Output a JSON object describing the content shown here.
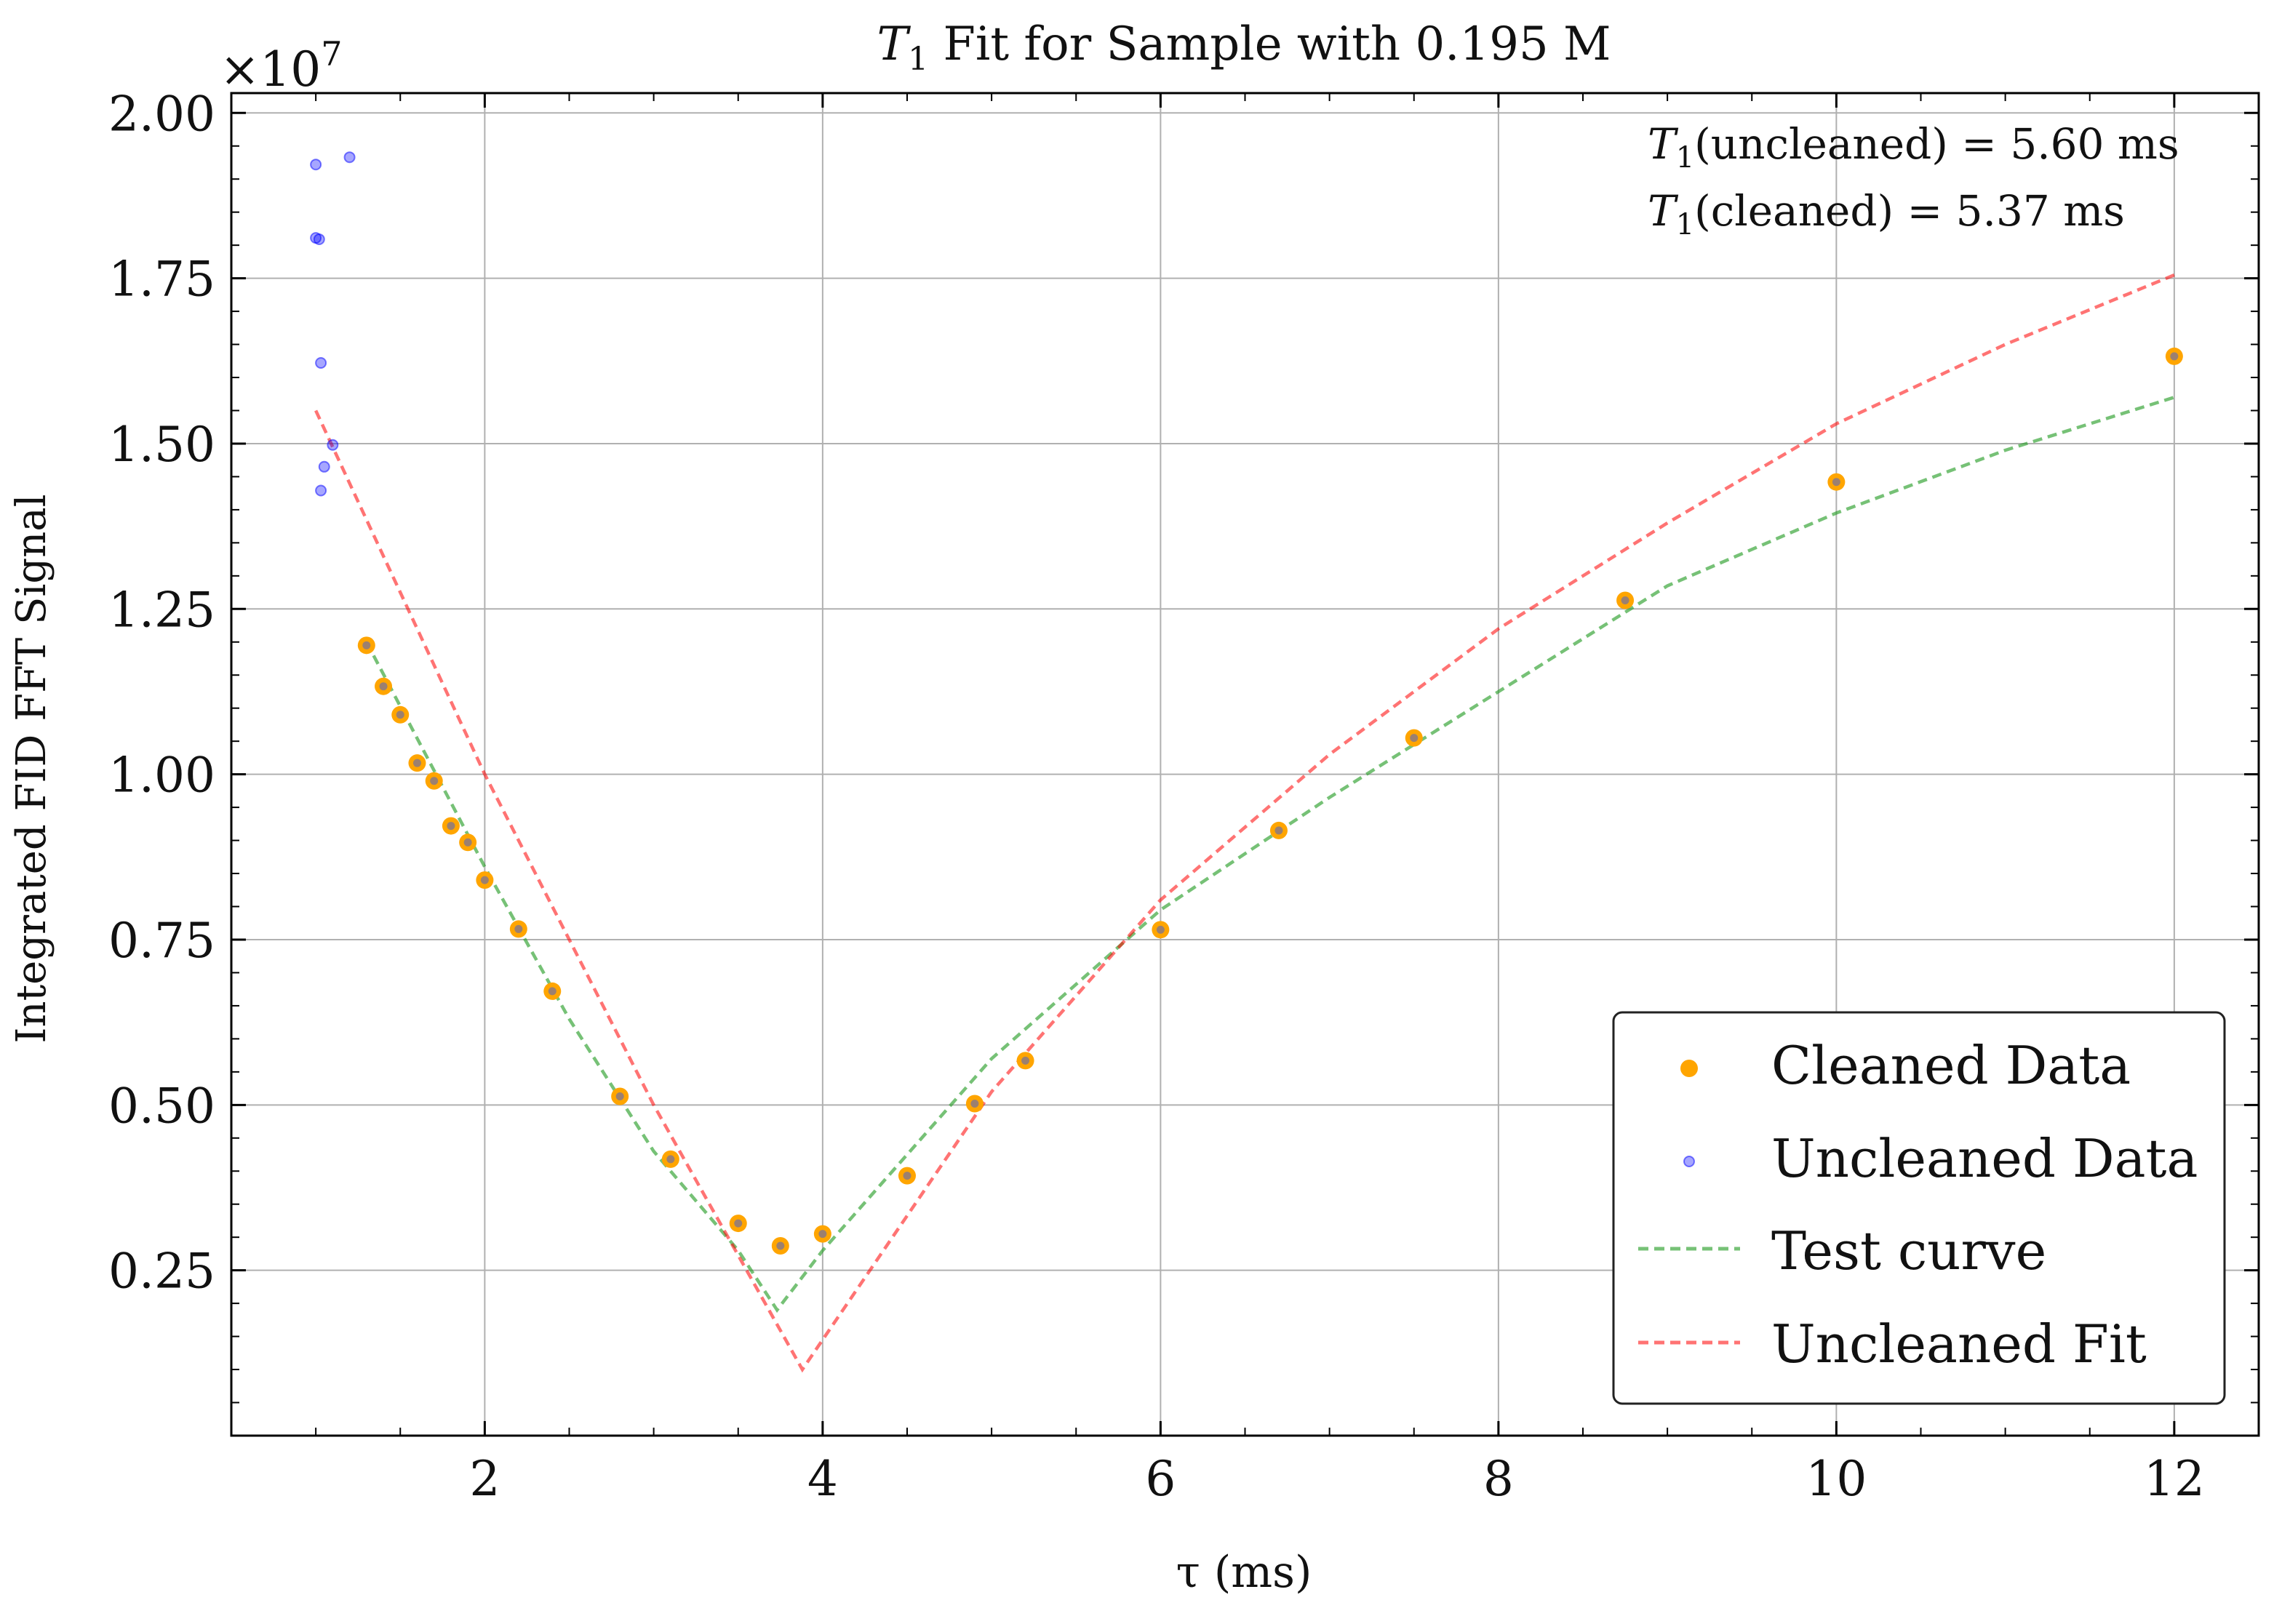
{
  "chart_data": {
    "type": "scatter",
    "title": "T1 Fit for Sample with 0.195 M",
    "title_symbol": "T",
    "title_subscript": "1",
    "title_rest": " Fit for Sample with 0.195 M",
    "xlabel": "τ (ms)",
    "ylabel": "Integrated FID FFT Signal",
    "y_offset_text": "×10",
    "y_offset_exponent": "7",
    "xlim": [
      0.5,
      12.5
    ],
    "ylim": [
      0.0,
      2.03
    ],
    "x_ticks": [
      2,
      4,
      6,
      8,
      10,
      12
    ],
    "x_tick_labels": [
      "2",
      "4",
      "6",
      "8",
      "10",
      "12"
    ],
    "y_ticks": [
      0.25,
      0.5,
      0.75,
      1.0,
      1.25,
      1.5,
      1.75,
      2.0
    ],
    "y_tick_labels": [
      "0.25",
      "0.50",
      "0.75",
      "1.00",
      "1.25",
      "1.50",
      "1.75",
      "2.00"
    ],
    "grid": true,
    "legend_position": "lower-right",
    "annotations": {
      "uncleaned": {
        "symbol": "T",
        "sub": "1",
        "text": "(uncleaned) = 5.60 ms"
      },
      "cleaned": {
        "symbol": "T",
        "sub": "1",
        "text": "(cleaned) = 5.37 ms"
      }
    },
    "series": [
      {
        "name": "Cleaned Data",
        "kind": "scatter",
        "color": "#ffa500",
        "x": [
          1.3,
          1.4,
          1.5,
          1.6,
          1.7,
          1.8,
          1.9,
          2.0,
          2.2,
          2.4,
          2.8,
          3.1,
          3.5,
          3.75,
          4.0,
          4.5,
          4.9,
          5.2,
          6.0,
          6.7,
          7.5,
          8.75,
          10.0,
          12.0
        ],
        "y": [
          1.195,
          1.133,
          1.09,
          1.017,
          0.99,
          0.922,
          0.897,
          0.84,
          0.766,
          0.672,
          0.513,
          0.418,
          0.321,
          0.287,
          0.305,
          0.393,
          0.502,
          0.567,
          0.765,
          0.915,
          1.055,
          1.263,
          1.442,
          1.632
        ]
      },
      {
        "name": "Uncleaned Data",
        "kind": "scatter",
        "color": "#0000ff",
        "x": [
          1.0,
          1.0,
          1.02,
          1.03,
          1.05,
          1.1,
          1.03,
          1.2
        ],
        "y": [
          1.922,
          1.811,
          1.809,
          1.622,
          1.465,
          1.498,
          1.429,
          1.933
        ]
      },
      {
        "name": "Test curve",
        "kind": "line",
        "color": "#2ca02c",
        "x": [
          1.3,
          2.0,
          2.5,
          3.0,
          3.5,
          3.73,
          4.0,
          5.0,
          6.0,
          7.0,
          8.0,
          9.0,
          10.0,
          11.0,
          12.0
        ],
        "y": [
          1.2,
          0.86,
          0.63,
          0.43,
          0.28,
          0.19,
          0.28,
          0.57,
          0.795,
          0.965,
          1.125,
          1.285,
          1.395,
          1.49,
          1.57
        ]
      },
      {
        "name": "Uncleaned Fit",
        "kind": "line",
        "color": "#ff0000",
        "x": [
          1.0,
          2.0,
          3.0,
          3.88,
          5.0,
          6.0,
          7.0,
          8.0,
          9.0,
          10.0,
          11.0,
          12.0
        ],
        "y": [
          1.55,
          1.0,
          0.5,
          0.1,
          0.52,
          0.81,
          1.03,
          1.22,
          1.38,
          1.53,
          1.65,
          1.755
        ]
      }
    ]
  }
}
